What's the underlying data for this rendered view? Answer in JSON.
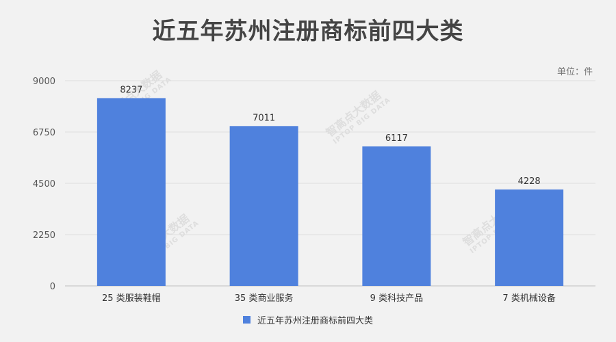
{
  "watermark": {
    "brand": "智高点大数据",
    "brand_en": "IPTOP BIG DATA"
  },
  "chart_data": {
    "type": "bar",
    "title": "近五年苏州注册商标前四大类",
    "unit_label": "单位：件",
    "categories": [
      "25 类服装鞋帽",
      "35 类商业服务",
      "9 类科技产品",
      "7 类机械设备"
    ],
    "series": [
      {
        "name": "近五年苏州注册商标前四大类",
        "values": [
          8237,
          7011,
          6117,
          4228
        ]
      }
    ],
    "ylim": [
      0,
      9000
    ],
    "yticks": [
      0,
      2250,
      4500,
      6750,
      9000
    ],
    "grid": true,
    "legend": "bottom",
    "bar_color": "#4f81dd"
  }
}
